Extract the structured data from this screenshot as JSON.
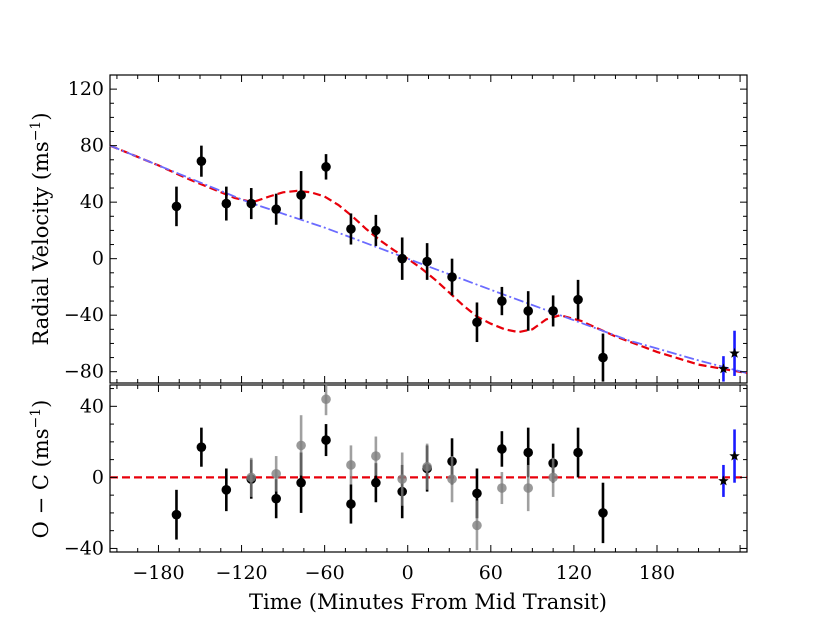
{
  "chart_data": [
    {
      "type": "scatter",
      "panel": "top",
      "ylabel_main": "Radial Velocity (ms",
      "ylabel_sup": "−1",
      "ylabel_close": ")",
      "xlim": [
        -215,
        245
      ],
      "ylim": [
        -88,
        130
      ],
      "yticks": [
        120,
        80,
        40,
        0,
        -40,
        -80
      ],
      "ytick_labels": [
        "120",
        "80",
        "40",
        "0",
        "−40",
        "−80"
      ],
      "series": [
        {
          "name": "primary",
          "marker": "circle",
          "color": "#000000",
          "points": [
            {
              "x": -167,
              "y": 37,
              "err": 14
            },
            {
              "x": -149,
              "y": 69,
              "err": 11
            },
            {
              "x": -131,
              "y": 39,
              "err": 12
            },
            {
              "x": -113,
              "y": 39,
              "err": 11
            },
            {
              "x": -95,
              "y": 35,
              "err": 11
            },
            {
              "x": -77,
              "y": 45,
              "err": 17
            },
            {
              "x": -59,
              "y": 65,
              "err": 9
            },
            {
              "x": -41,
              "y": 21,
              "err": 11
            },
            {
              "x": -23,
              "y": 20,
              "err": 11
            },
            {
              "x": -4,
              "y": 0,
              "err": 15
            },
            {
              "x": 14,
              "y": -2,
              "err": 13
            },
            {
              "x": 32,
              "y": -13,
              "err": 13
            },
            {
              "x": 50,
              "y": -45,
              "err": 14
            },
            {
              "x": 68,
              "y": -30,
              "err": 10
            },
            {
              "x": 87,
              "y": -37,
              "err": 14
            },
            {
              "x": 105,
              "y": -37,
              "err": 11
            },
            {
              "x": 123,
              "y": -29,
              "err": 14
            },
            {
              "x": 141,
              "y": -70,
              "err": 17
            }
          ]
        },
        {
          "name": "secondary",
          "marker": "star",
          "color": "#000000",
          "errcolor": "#1a1aff",
          "points": [
            {
              "x": 228,
              "y": -78,
              "err": 9
            },
            {
              "x": 236,
              "y": -67,
              "err": 16
            }
          ]
        }
      ],
      "models": [
        {
          "name": "RM model",
          "style": "dashed",
          "color": "#e8000b",
          "points": [
            [
              -215,
              80
            ],
            [
              -200,
              74
            ],
            [
              -180,
              66
            ],
            [
              -160,
              57
            ],
            [
              -140,
              49
            ],
            [
              -125,
              43
            ],
            [
              -112,
              40
            ],
            [
              -100,
              44
            ],
            [
              -90,
              47
            ],
            [
              -80,
              48
            ],
            [
              -70,
              47
            ],
            [
              -60,
              44
            ],
            [
              -50,
              38
            ],
            [
              -40,
              30
            ],
            [
              -30,
              21
            ],
            [
              -20,
              13
            ],
            [
              -10,
              6
            ],
            [
              0,
              0
            ],
            [
              10,
              -7
            ],
            [
              20,
              -15
            ],
            [
              30,
              -24
            ],
            [
              40,
              -33
            ],
            [
              50,
              -41
            ],
            [
              60,
              -46
            ],
            [
              70,
              -50
            ],
            [
              80,
              -52
            ],
            [
              90,
              -50
            ],
            [
              100,
              -43
            ],
            [
              110,
              -40
            ],
            [
              125,
              -44
            ],
            [
              150,
              -55
            ],
            [
              180,
              -66
            ],
            [
              210,
              -75
            ],
            [
              245,
              -81
            ]
          ]
        },
        {
          "name": "Keplerian",
          "style": "dashdot",
          "color": "#6b6bff",
          "points": [
            [
              -215,
              80
            ],
            [
              -165,
              60
            ],
            [
              -115,
              40
            ],
            [
              -60,
              22
            ],
            [
              0,
              0
            ],
            [
              60,
              -22
            ],
            [
              110,
              -40
            ],
            [
              160,
              -58
            ],
            [
              210,
              -72
            ],
            [
              245,
              -81
            ]
          ]
        }
      ]
    },
    {
      "type": "scatter",
      "panel": "bottom",
      "ylabel_main": "O − C (ms",
      "ylabel_sup": "−1",
      "ylabel_close": ")",
      "xlabel": "Time (Minutes From Mid Transit)",
      "xlim": [
        -215,
        245
      ],
      "ylim": [
        -42,
        52
      ],
      "xticks": [
        -180,
        -120,
        -60,
        0,
        60,
        120,
        180
      ],
      "xtick_labels": [
        "−180",
        "−120",
        "−60",
        "0",
        "60",
        "120",
        "180"
      ],
      "yticks": [
        40,
        0,
        -40
      ],
      "ytick_labels": [
        "40",
        "0",
        "−40"
      ],
      "zero_line": {
        "y": 0,
        "style": "dashed",
        "color": "#e8000b"
      },
      "series": [
        {
          "name": "residuals",
          "marker": "circle",
          "color": "#000000",
          "points": [
            {
              "x": -167,
              "y": -21,
              "err": 14
            },
            {
              "x": -149,
              "y": 17,
              "err": 11
            },
            {
              "x": -131,
              "y": -7,
              "err": 12
            },
            {
              "x": -113,
              "y": -1,
              "err": 11
            },
            {
              "x": -95,
              "y": -12,
              "err": 11
            },
            {
              "x": -77,
              "y": -3,
              "err": 17
            },
            {
              "x": -59,
              "y": 21,
              "err": 9
            },
            {
              "x": -41,
              "y": -15,
              "err": 11
            },
            {
              "x": -23,
              "y": -3,
              "err": 11
            },
            {
              "x": -4,
              "y": -8,
              "err": 15
            },
            {
              "x": 14,
              "y": 5,
              "err": 13
            },
            {
              "x": 32,
              "y": 9,
              "err": 13
            },
            {
              "x": 50,
              "y": -9,
              "err": 14
            },
            {
              "x": 68,
              "y": 16,
              "err": 10
            },
            {
              "x": 87,
              "y": 14,
              "err": 14
            },
            {
              "x": 105,
              "y": 8,
              "err": 11
            },
            {
              "x": 123,
              "y": 14,
              "err": 14
            },
            {
              "x": 141,
              "y": -20,
              "err": 17
            }
          ]
        },
        {
          "name": "residuals (alternate model)",
          "marker": "circle",
          "color": "#808080",
          "points": [
            {
              "x": -113,
              "y": 0,
              "err": 11
            },
            {
              "x": -95,
              "y": 2,
              "err": 10
            },
            {
              "x": -77,
              "y": 18,
              "err": 17
            },
            {
              "x": -59,
              "y": 44,
              "err": 9
            },
            {
              "x": -41,
              "y": 7,
              "err": 11
            },
            {
              "x": -23,
              "y": 12,
              "err": 11
            },
            {
              "x": -4,
              "y": -1,
              "err": 15
            },
            {
              "x": 14,
              "y": 6,
              "err": 13
            },
            {
              "x": 32,
              "y": -1,
              "err": 13
            },
            {
              "x": 50,
              "y": -27,
              "err": 14
            },
            {
              "x": 68,
              "y": -6,
              "err": 9
            },
            {
              "x": 87,
              "y": -6,
              "err": 13
            },
            {
              "x": 105,
              "y": 0,
              "err": 11
            }
          ]
        },
        {
          "name": "secondary residuals",
          "marker": "star",
          "color": "#000000",
          "errcolor": "#1a1aff",
          "points": [
            {
              "x": 228,
              "y": -2,
              "err": 9
            },
            {
              "x": 236,
              "y": 12,
              "err": 15
            }
          ]
        }
      ]
    }
  ]
}
